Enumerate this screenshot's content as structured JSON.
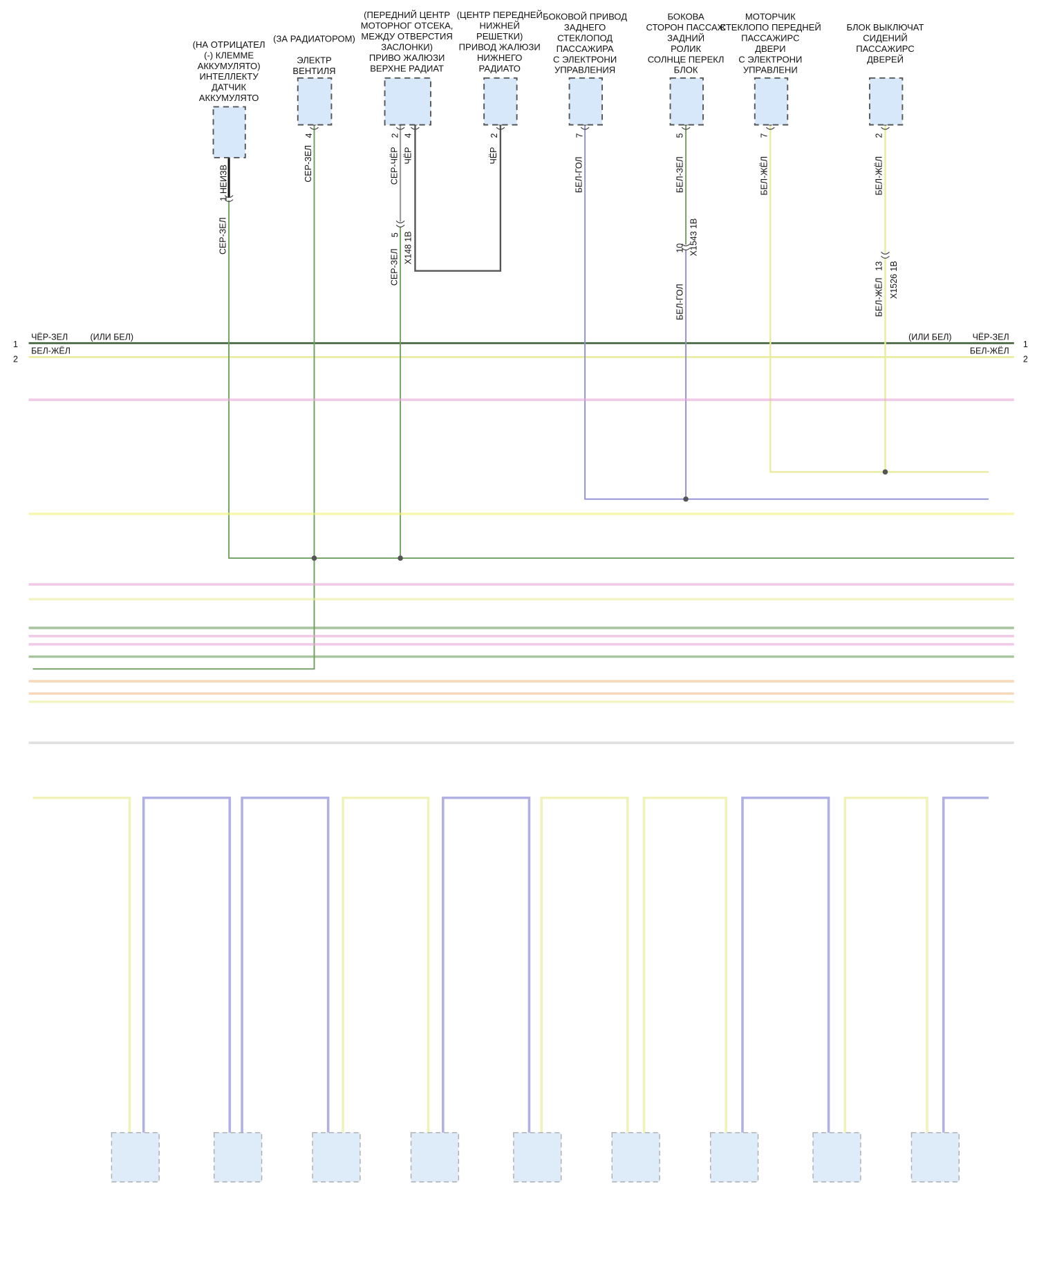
{
  "colors": {
    "box_fill": "#d6e8fa",
    "box_stroke": "#555555",
    "green": "#6f9f5f",
    "dark_green": "#3d5e34",
    "yellow": "#e9ec9c",
    "purple": "#8f8fd8",
    "gray": "#999999",
    "black": "#333333",
    "pink": "#e8a6d8",
    "orange": "#f2c08a",
    "light_gray_green": "#b9c9b4"
  },
  "components": [
    {
      "label": [
        "(НА ОТРИЦАТЕЛ",
        "(-) КЛЕММЕ",
        "АККУМУЛЯТО)",
        "ИНТЕЛЛЕКТУ",
        "ДАТЧИК",
        "АККУМУЛЯТО"
      ],
      "pins": [
        "1"
      ],
      "wires": [
        "НЕИЗВ",
        "СЕР-ЗЕЛ"
      ]
    },
    {
      "label": [
        "(ЗА РАДИАТОРОМ)",
        "",
        "ЭЛЕКТР",
        "ВЕНТИЛЯ"
      ],
      "pins": [
        "4"
      ],
      "wires": [
        "СЕР-ЗЕЛ"
      ]
    },
    {
      "label": [
        "(ПЕРЕДНИЙ ЦЕНТР",
        "МОТОРНОГ ОТСЕКА,",
        "МЕЖДУ ОТВЕРСТИЯ",
        "ЗАСЛОНКИ)",
        "ПРИВО ЖАЛЮЗИ",
        "ВЕРХНЕ РАДИАТ"
      ],
      "pins": [
        "2",
        "4"
      ],
      "wires": [
        "СЕР-ЧЁР",
        "ЧЁР",
        "СЕР-ЗЕЛ"
      ],
      "connector": {
        "pin": "5",
        "name": "X148 1B"
      }
    },
    {
      "label": [
        "(ЦЕНТР ПЕРЕДНЕЙ",
        "НИЖНЕЙ",
        "РЕШЕТКИ)",
        "ПРИВОД ЖАЛЮЗИ",
        "НИЖНЕГО",
        "РАДИАТО"
      ],
      "pins": [
        "2"
      ],
      "wires": [
        "ЧЁР"
      ]
    },
    {
      "label": [
        "БОКОВОЙ ПРИВОД",
        "ЗАДНЕГО",
        "СТЕКЛОПОД",
        "ПАССАЖИРА",
        "С ЭЛЕКТРОНИ",
        "УПРАВЛЕНИЯ"
      ],
      "pins": [
        "7"
      ],
      "wires": [
        "БЕЛ-ГОЛ"
      ]
    },
    {
      "label": [
        "БОКОВА",
        "СТОРОН ПАССАЖ",
        "ЗАДНИЙ",
        "РОЛИК",
        "СОЛНЦЕ ПЕРЕКЛ",
        "БЛОК"
      ],
      "pins": [
        "5"
      ],
      "wires": [
        "БЕЛ-ЗЕЛ",
        "БЕЛ-ГОЛ"
      ],
      "connector": {
        "pin": "10",
        "name": "X1543 1B"
      }
    },
    {
      "label": [
        "МОТОРЧИК",
        "СТЕКЛОПО ПЕРЕДНЕЙ",
        "ПАССАЖИРС",
        "ДВЕРИ",
        "С ЭЛЕКТРОНИ",
        "УПРАВЛЕНИ"
      ],
      "pins": [
        "7"
      ],
      "wires": [
        "БЕЛ-ЖЁЛ"
      ]
    },
    {
      "label": [
        "БЛОК ВЫКЛЮЧАТ",
        "СИДЕНИЙ",
        "ПАССАЖИРС",
        "ДВЕРЕЙ"
      ],
      "pins": [
        "2"
      ],
      "wires": [
        "БЕЛ-ЖЁЛ",
        "БЕЛ-ЖЁЛ"
      ],
      "connector": {
        "pin": "13",
        "name": "X1526 1B"
      }
    }
  ],
  "bus": {
    "line1": {
      "num": "1",
      "color_label": "ЧЁР-ЗЕЛ",
      "alt": "(ИЛИ БЕЛ)"
    },
    "line2": {
      "num": "2",
      "color_label": "БЕЛ-ЖЁЛ"
    }
  }
}
